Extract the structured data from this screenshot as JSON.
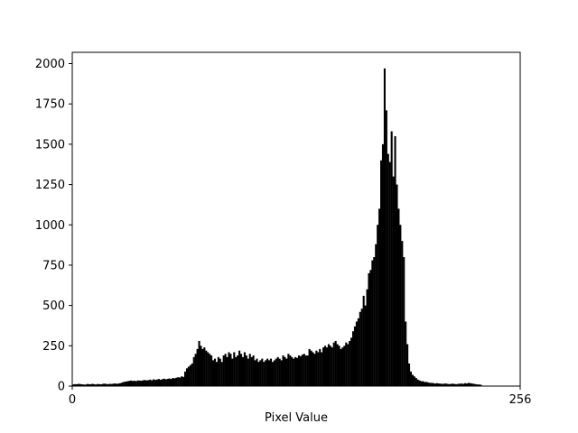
{
  "chart_data": {
    "type": "bar",
    "title": "",
    "xlabel": "Pixel Value",
    "ylabel": "",
    "xlim": [
      0,
      256
    ],
    "ylim": [
      0,
      2070
    ],
    "grid": false,
    "bar_color": "#000000",
    "x_ticks": [
      {
        "value": 0,
        "label": "0"
      },
      {
        "value": 256,
        "label": "256"
      }
    ],
    "y_ticks": [
      {
        "value": 0,
        "label": "0"
      },
      {
        "value": 250,
        "label": "250"
      },
      {
        "value": 500,
        "label": "500"
      },
      {
        "value": 750,
        "label": "750"
      },
      {
        "value": 1000,
        "label": "1000"
      },
      {
        "value": 1250,
        "label": "1250"
      },
      {
        "value": 1500,
        "label": "1500"
      },
      {
        "value": 1750,
        "label": "1750"
      },
      {
        "value": 2000,
        "label": "2000"
      }
    ],
    "bin_start": 0,
    "bin_width": 1,
    "values": [
      10,
      12,
      11,
      14,
      13,
      11,
      10,
      9,
      13,
      12,
      11,
      14,
      12,
      10,
      13,
      12,
      11,
      14,
      15,
      13,
      12,
      14,
      13,
      15,
      16,
      14,
      16,
      18,
      22,
      26,
      28,
      30,
      32,
      34,
      32,
      33,
      31,
      35,
      34,
      33,
      36,
      38,
      35,
      37,
      40,
      36,
      42,
      38,
      41,
      44,
      39,
      43,
      46,
      42,
      45,
      47,
      44,
      50,
      48,
      52,
      55,
      53,
      60,
      57,
      90,
      110,
      120,
      130,
      140,
      180,
      200,
      230,
      280,
      250,
      230,
      240,
      220,
      210,
      200,
      190,
      160,
      170,
      150,
      180,
      170,
      150,
      190,
      200,
      180,
      210,
      200,
      170,
      210,
      180,
      190,
      220,
      200,
      180,
      210,
      190,
      170,
      200,
      180,
      190,
      160,
      170,
      150,
      160,
      170,
      150,
      160,
      170,
      160,
      170,
      150,
      160,
      170,
      180,
      170,
      160,
      190,
      180,
      170,
      200,
      190,
      180,
      170,
      180,
      175,
      190,
      185,
      195,
      200,
      190,
      190,
      230,
      220,
      210,
      200,
      220,
      210,
      230,
      210,
      240,
      250,
      240,
      260,
      250,
      240,
      270,
      280,
      260,
      250,
      230,
      240,
      250,
      270,
      260,
      280,
      300,
      340,
      370,
      400,
      420,
      460,
      480,
      560,
      500,
      600,
      700,
      720,
      780,
      800,
      880,
      1000,
      1100,
      1400,
      1500,
      1970,
      1710,
      1440,
      1390,
      1580,
      1300,
      1550,
      1250,
      1100,
      1000,
      900,
      800,
      400,
      260,
      140,
      90,
      70,
      60,
      50,
      40,
      35,
      30,
      30,
      25,
      26,
      22,
      20,
      20,
      18,
      16,
      18,
      16,
      15,
      14,
      15,
      16,
      14,
      12,
      14,
      15,
      13,
      12,
      14,
      15,
      16,
      14,
      18,
      16,
      20,
      18,
      16,
      14,
      12,
      10,
      10,
      8
    ]
  }
}
